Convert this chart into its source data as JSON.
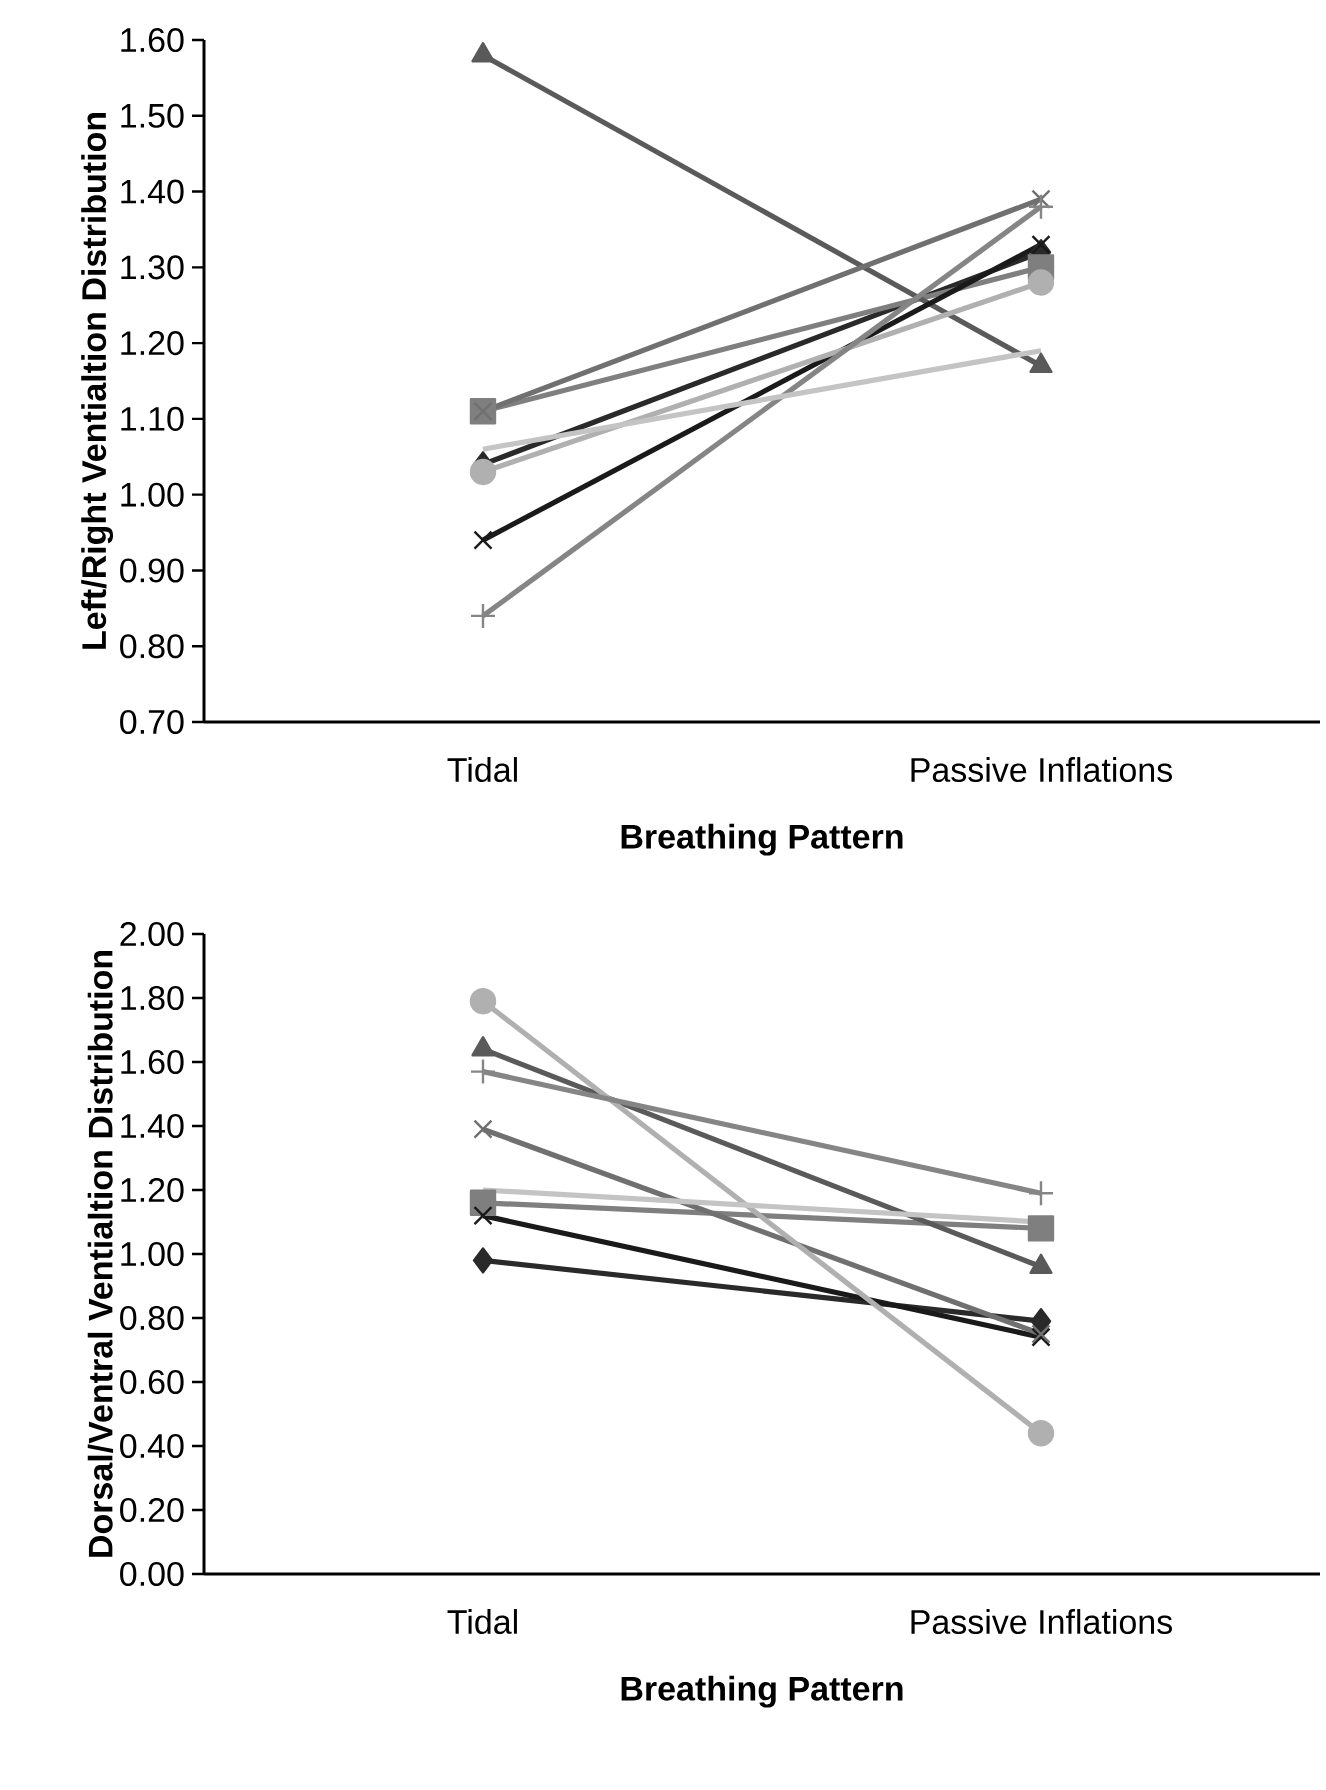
{
  "chart_data": [
    {
      "type": "line",
      "xlabel": "Breathing Pattern",
      "ylabel": "Left/Right Ventialtion Distribution",
      "categories": [
        "Tidal",
        "Passive Inflations"
      ],
      "ylim": [
        0.7,
        1.6
      ],
      "yticks": [
        {
          "value": 0.7,
          "label": "0.70"
        },
        {
          "value": 0.8,
          "label": "0.80"
        },
        {
          "value": 0.9,
          "label": "0.90"
        },
        {
          "value": 1.0,
          "label": "1.00"
        },
        {
          "value": 1.1,
          "label": "1.10"
        },
        {
          "value": 1.2,
          "label": "1.20"
        },
        {
          "value": 1.3,
          "label": "1.30"
        },
        {
          "value": 1.4,
          "label": "1.40"
        },
        {
          "value": 1.5,
          "label": "1.50"
        },
        {
          "value": 1.6,
          "label": "1.60"
        }
      ],
      "grid": false,
      "series": [
        {
          "color": "#2a2a2a",
          "marker": "diamond",
          "values": [
            1.04,
            1.32
          ]
        },
        {
          "color": "#7f7f7f",
          "marker": "square",
          "values": [
            1.11,
            1.3
          ]
        },
        {
          "color": "#5a5a5a",
          "marker": "triangle",
          "values": [
            1.58,
            1.17
          ]
        },
        {
          "color": "#1a1a1a",
          "marker": "cross",
          "values": [
            0.94,
            1.33
          ]
        },
        {
          "color": "#707070",
          "marker": "cross",
          "values": [
            1.11,
            1.39
          ]
        },
        {
          "color": "#b0b0b0",
          "marker": "circle",
          "values": [
            1.03,
            1.28
          ]
        },
        {
          "color": "#858585",
          "marker": "plus",
          "values": [
            0.84,
            1.38
          ]
        },
        {
          "color": "#c4c4c4",
          "marker": "none",
          "values": [
            1.06,
            1.19
          ]
        }
      ]
    },
    {
      "type": "line",
      "xlabel": "Breathing Pattern",
      "ylabel": "Dorsal/Ventral Ventialtion Distribution",
      "categories": [
        "Tidal",
        "Passive Inflations"
      ],
      "ylim": [
        0,
        2
      ],
      "yticks": [
        {
          "value": 0,
          "label": "0.00"
        },
        {
          "value": 0.2,
          "label": "0.20"
        },
        {
          "value": 0.4,
          "label": "0.40"
        },
        {
          "value": 0.6,
          "label": "0.60"
        },
        {
          "value": 0.8,
          "label": "0.80"
        },
        {
          "value": 1.0,
          "label": "1.00"
        },
        {
          "value": 1.2,
          "label": "1.20"
        },
        {
          "value": 1.4,
          "label": "1.40"
        },
        {
          "value": 1.6,
          "label": "1.60"
        },
        {
          "value": 1.8,
          "label": "1.80"
        },
        {
          "value": 2.0,
          "label": "2.00"
        }
      ],
      "grid": false,
      "series": [
        {
          "color": "#2a2a2a",
          "marker": "diamond",
          "values": [
            0.98,
            0.79
          ]
        },
        {
          "color": "#7f7f7f",
          "marker": "square",
          "values": [
            1.16,
            1.08
          ]
        },
        {
          "color": "#5a5a5a",
          "marker": "triangle",
          "values": [
            1.64,
            0.96
          ]
        },
        {
          "color": "#1a1a1a",
          "marker": "cross",
          "values": [
            1.12,
            0.74
          ]
        },
        {
          "color": "#707070",
          "marker": "cross",
          "values": [
            1.39,
            0.75
          ]
        },
        {
          "color": "#b0b0b0",
          "marker": "circle",
          "values": [
            1.79,
            0.44
          ]
        },
        {
          "color": "#858585",
          "marker": "plus",
          "values": [
            1.57,
            1.19
          ]
        },
        {
          "color": "#c4c4c4",
          "marker": "none",
          "values": [
            1.2,
            1.1
          ]
        }
      ]
    }
  ]
}
